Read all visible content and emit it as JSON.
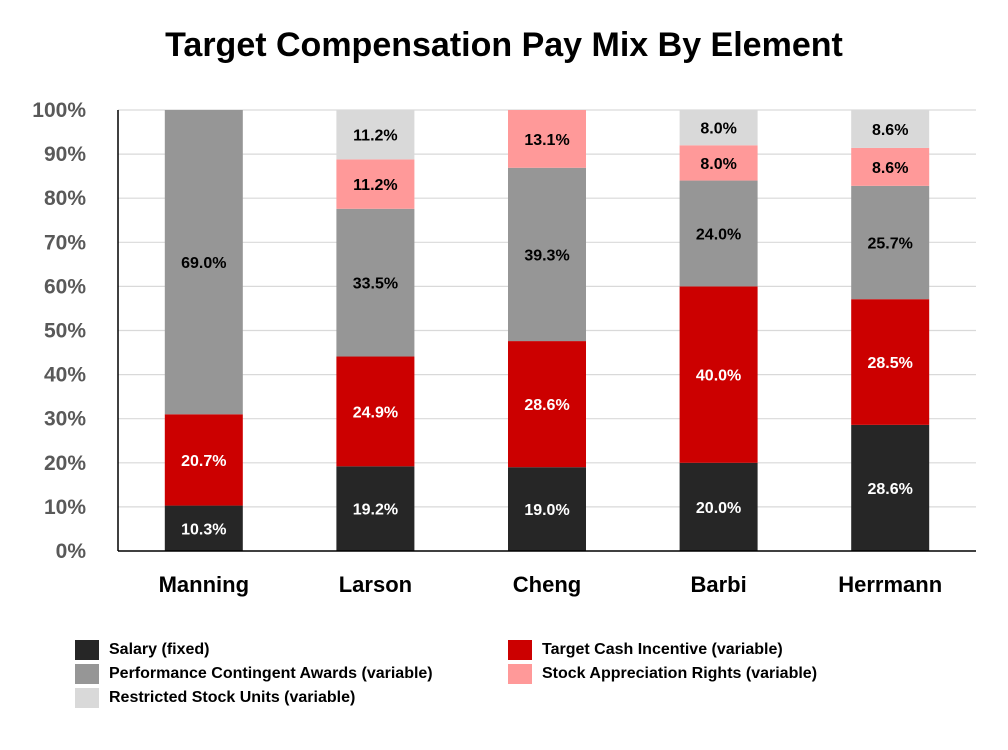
{
  "chart_data": {
    "type": "bar",
    "stacked": true,
    "title": "Target Compensation Pay Mix By Element",
    "categories": [
      "Manning",
      "Larson",
      "Cheng",
      "Barbi",
      "Herrmann"
    ],
    "ylim": [
      0,
      100
    ],
    "yticks": [
      "0%",
      "10%",
      "20%",
      "30%",
      "40%",
      "50%",
      "60%",
      "70%",
      "80%",
      "90%",
      "100%"
    ],
    "grid": true,
    "legend_position": "bottom",
    "series": [
      {
        "name": "Salary (fixed)",
        "color": "#262626",
        "label_color": "#ffffff",
        "values": [
          10.3,
          19.2,
          19.0,
          20.0,
          28.6
        ],
        "labels": [
          "10.3%",
          "19.2%",
          "19.0%",
          "20.0%",
          "28.6%"
        ]
      },
      {
        "name": "Target Cash Incentive (variable)",
        "color": "#cc0000",
        "label_color": "#ffffff",
        "values": [
          20.7,
          24.9,
          28.6,
          40.0,
          28.5
        ],
        "labels": [
          "20.7%",
          "24.9%",
          "28.6%",
          "40.0%",
          "28.5%"
        ]
      },
      {
        "name": "Performance Contingent Awards (variable)",
        "color": "#969696",
        "label_color": "#000000",
        "values": [
          69.0,
          33.5,
          39.3,
          24.0,
          25.7
        ],
        "labels": [
          "69.0%",
          "33.5%",
          "39.3%",
          "24.0%",
          "25.7%"
        ]
      },
      {
        "name": "Stock Appreciation Rights (variable)",
        "color": "#ff9999",
        "label_color": "#000000",
        "values": [
          0,
          11.2,
          13.1,
          8.0,
          8.6
        ],
        "labels": [
          "",
          "11.2%",
          "13.1%",
          "8.0%",
          "8.6%"
        ]
      },
      {
        "name": "Restricted Stock Units (variable)",
        "color": "#d9d9d9",
        "label_color": "#000000",
        "values": [
          0,
          11.2,
          0,
          8.0,
          8.6
        ],
        "labels": [
          "",
          "11.2%",
          "",
          "8.0%",
          "8.6%"
        ]
      }
    ]
  },
  "legend": {
    "items": [
      {
        "name": "Salary (fixed)",
        "color": "#262626"
      },
      {
        "name": "Target Cash Incentive (variable)",
        "color": "#cc0000"
      },
      {
        "name": "Performance Contingent Awards (variable)",
        "color": "#969696"
      },
      {
        "name": "Stock Appreciation Rights (variable)",
        "color": "#ff9999"
      },
      {
        "name": "Restricted Stock Units (variable)",
        "color": "#d9d9d9"
      }
    ]
  }
}
